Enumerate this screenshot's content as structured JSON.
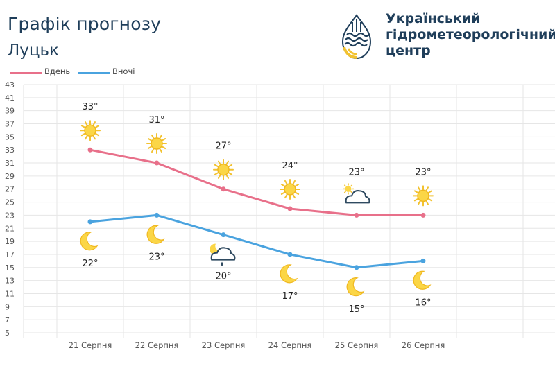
{
  "header": {
    "title": "Графік прогнозу",
    "city": "Луцьк",
    "organization": "Український\nгідрометеорологічний\nцентр"
  },
  "logo": {
    "icon": "ukrhydromet-logo-icon",
    "colors": [
      "#1f3e5a",
      "#f2c230"
    ]
  },
  "chart_data": {
    "type": "line",
    "categories": [
      "21 Серпня",
      "22 Серпня",
      "23 Серпня",
      "24 Серпня",
      "25 Серпня",
      "26 Серпня"
    ],
    "series": [
      {
        "name": "Вдень",
        "color": "#e8708a",
        "values": [
          33,
          31,
          27,
          24,
          23,
          23
        ],
        "labels": [
          "33°",
          "31°",
          "27°",
          "24°",
          "23°",
          "23°"
        ],
        "icons": [
          "sun-icon",
          "sun-icon",
          "sun-icon",
          "sun-icon",
          "cloud-sun-icon",
          "sun-icon"
        ]
      },
      {
        "name": "Вночі",
        "color": "#4aa3df",
        "values": [
          22,
          23,
          20,
          17,
          15,
          16
        ],
        "labels": [
          "22°",
          "23°",
          "20°",
          "17°",
          "15°",
          "16°"
        ],
        "icons": [
          "moon-icon",
          "moon-icon",
          "cloud-rain-moon-icon",
          "moon-icon",
          "moon-icon",
          "moon-icon"
        ]
      }
    ],
    "yticks": [
      5,
      7,
      9,
      11,
      13,
      15,
      17,
      19,
      21,
      23,
      25,
      27,
      29,
      31,
      33,
      35,
      37,
      39,
      41,
      43
    ],
    "ylim": [
      5,
      43
    ],
    "grid": true,
    "legend": "top-left"
  }
}
